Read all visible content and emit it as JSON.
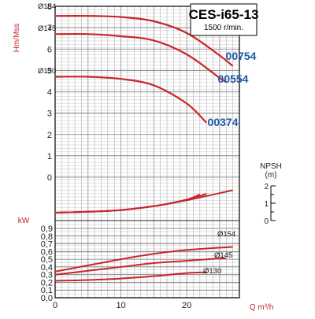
{
  "chart_data": {
    "type": "line",
    "title": "CES-i65-13",
    "subtitle": "1500 r/min.",
    "xlabel": "Q m³/h",
    "xlim": [
      0,
      28
    ],
    "x_ticks": [
      "0",
      "10",
      "20"
    ],
    "head": {
      "ylabel": "Hm/Mss",
      "ylim": [
        0,
        8
      ],
      "y_ticks": [
        "0",
        "1",
        "2",
        "3",
        "4",
        "5",
        "6",
        "7",
        "8"
      ],
      "series": [
        {
          "name": "Ø154",
          "model": "00754",
          "x": [
            0,
            5,
            10,
            15,
            20,
            25,
            27
          ],
          "y": [
            7.55,
            7.55,
            7.5,
            7.3,
            6.75,
            5.7,
            5.2
          ]
        },
        {
          "name": "Ø145",
          "model": "00554",
          "x": [
            0,
            5,
            10,
            15,
            20,
            25,
            26
          ],
          "y": [
            6.7,
            6.7,
            6.6,
            6.4,
            5.75,
            4.65,
            4.45
          ]
        },
        {
          "name": "Ø130",
          "model": "00374",
          "x": [
            0,
            5,
            10,
            15,
            20,
            23
          ],
          "y": [
            4.7,
            4.7,
            4.6,
            4.3,
            3.45,
            2.55
          ]
        }
      ]
    },
    "npsh": {
      "label": "NPSH",
      "unit": "(m)",
      "ylim": [
        0,
        2
      ],
      "y_ticks": [
        "0",
        "1",
        "2"
      ],
      "series": [
        {
          "x": [
            0,
            5,
            10,
            15,
            20,
            27
          ],
          "y": [
            0.0,
            0.08,
            0.22,
            0.55,
            1.05,
            1.9
          ]
        },
        {
          "x": [
            0,
            5,
            10,
            15,
            20,
            22
          ],
          "y": [
            0.0,
            0.08,
            0.22,
            0.55,
            1.1,
            1.55
          ]
        },
        {
          "x": [
            0,
            5,
            10,
            15,
            20,
            23
          ],
          "y": [
            0.0,
            0.08,
            0.22,
            0.55,
            1.1,
            1.6
          ]
        }
      ]
    },
    "power": {
      "ylabel": "kW",
      "ylim": [
        0,
        0.9
      ],
      "y_ticks": [
        "0,0",
        "0,1",
        "0,2",
        "0,3",
        "0,4",
        "0,5",
        "0,6",
        "0,7",
        "0,8",
        "0,9"
      ],
      "series": [
        {
          "name": "Ø154",
          "x": [
            0,
            5,
            10,
            15,
            20,
            25,
            27
          ],
          "y": [
            0.34,
            0.42,
            0.5,
            0.57,
            0.62,
            0.65,
            0.66
          ]
        },
        {
          "name": "Ø145",
          "x": [
            0,
            5,
            10,
            15,
            20,
            25,
            26
          ],
          "y": [
            0.3,
            0.35,
            0.4,
            0.45,
            0.48,
            0.51,
            0.51
          ]
        },
        {
          "name": "Ø130",
          "x": [
            0,
            5,
            10,
            15,
            20,
            23
          ],
          "y": [
            0.22,
            0.23,
            0.25,
            0.28,
            0.32,
            0.33
          ]
        }
      ]
    },
    "colors": {
      "curve": "#c8262b",
      "axis_label": "#c0262d",
      "model_label": "#1e5aa8",
      "grid": "#888888"
    }
  }
}
